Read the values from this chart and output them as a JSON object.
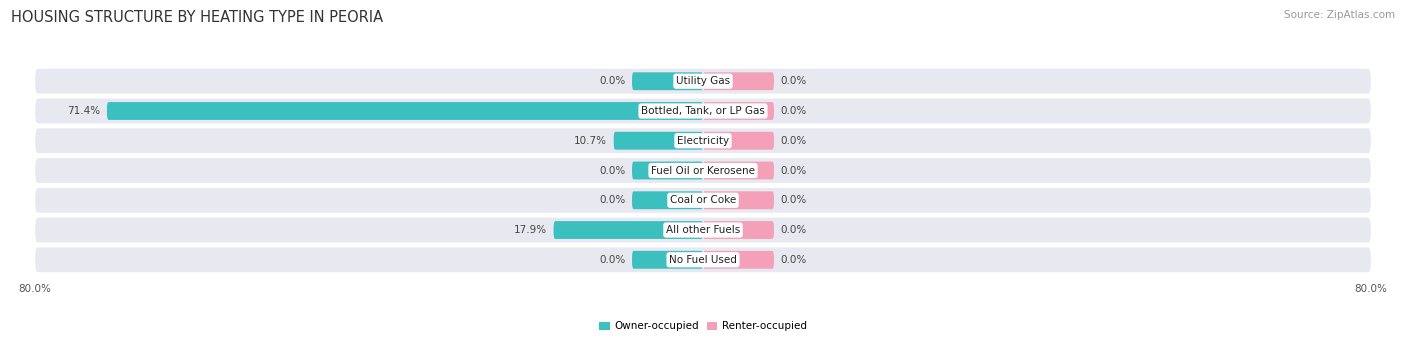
{
  "title": "HOUSING STRUCTURE BY HEATING TYPE IN PEORIA",
  "source": "Source: ZipAtlas.com",
  "categories": [
    "Utility Gas",
    "Bottled, Tank, or LP Gas",
    "Electricity",
    "Fuel Oil or Kerosene",
    "Coal or Coke",
    "All other Fuels",
    "No Fuel Used"
  ],
  "owner_values": [
    0.0,
    71.4,
    10.7,
    0.0,
    0.0,
    17.9,
    0.0
  ],
  "renter_values": [
    0.0,
    0.0,
    0.0,
    0.0,
    0.0,
    0.0,
    0.0
  ],
  "owner_color": "#3BBFBF",
  "renter_color": "#F4A0B8",
  "bar_row_bg": "#E8E8F0",
  "background_color": "#FFFFFF",
  "legend_owner": "Owner-occupied",
  "legend_renter": "Renter-occupied",
  "title_fontsize": 10.5,
  "source_fontsize": 7.5,
  "label_fontsize": 7.5,
  "category_fontsize": 7.5,
  "axis_min": -80.0,
  "axis_max": 80.0,
  "zero_stub": 8.5
}
